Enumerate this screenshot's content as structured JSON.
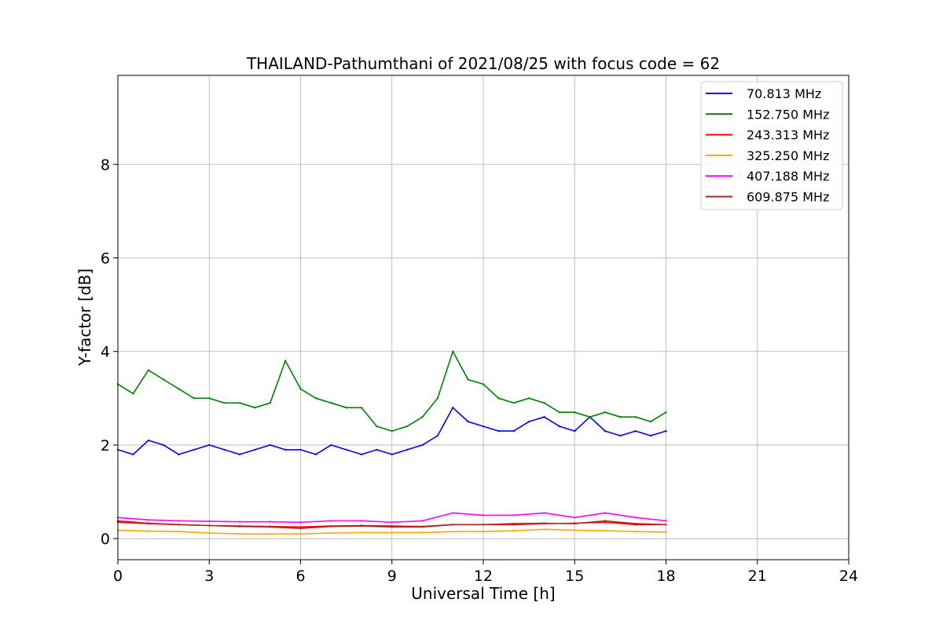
{
  "chart_data": {
    "type": "line",
    "title": "THAILAND-Pathumthani of 2021/08/25 with focus code = 62",
    "xlabel": "Universal Time [h]",
    "ylabel": "Y-factor [dB]",
    "xlim": [
      0,
      24
    ],
    "ylim": [
      -0.45,
      9.9
    ],
    "xticks": [
      0,
      3,
      6,
      9,
      12,
      15,
      18,
      21,
      24
    ],
    "yticks": [
      0,
      2,
      4,
      6,
      8
    ],
    "grid": true,
    "legend_position": "top-right",
    "series": [
      {
        "name": " 70.813 MHz",
        "color": "#0000ff",
        "x": [
          0,
          0.5,
          1,
          1.5,
          2,
          2.5,
          3,
          3.5,
          4,
          4.5,
          5,
          5.5,
          6,
          6.5,
          7,
          7.5,
          8,
          8.5,
          9,
          9.5,
          10,
          10.5,
          11,
          11.5,
          12,
          12.5,
          13,
          13.5,
          14,
          14.5,
          15,
          15.5,
          16,
          16.5,
          17,
          17.5,
          18
        ],
        "values": [
          1.9,
          1.8,
          2.1,
          2.0,
          1.8,
          1.9,
          2.0,
          1.9,
          1.8,
          1.9,
          2.0,
          1.9,
          1.9,
          1.8,
          2.0,
          1.9,
          1.8,
          1.9,
          1.8,
          1.9,
          2.0,
          2.2,
          2.8,
          2.5,
          2.4,
          2.3,
          2.3,
          2.5,
          2.6,
          2.4,
          2.3,
          2.6,
          2.3,
          2.2,
          2.3,
          2.2,
          2.3
        ]
      },
      {
        "name": "152.750 MHz",
        "color": "#008000",
        "x": [
          0,
          0.5,
          1,
          1.5,
          2,
          2.5,
          3,
          3.5,
          4,
          4.5,
          5,
          5.5,
          6,
          6.5,
          7,
          7.5,
          8,
          8.5,
          9,
          9.5,
          10,
          10.5,
          11,
          11.5,
          12,
          12.5,
          13,
          13.5,
          14,
          14.5,
          15,
          15.5,
          16,
          16.5,
          17,
          17.5,
          18
        ],
        "values": [
          3.3,
          3.1,
          3.6,
          3.4,
          3.2,
          3.0,
          3.0,
          2.9,
          2.9,
          2.8,
          2.9,
          3.8,
          3.2,
          3.0,
          2.9,
          2.8,
          2.8,
          2.4,
          2.3,
          2.4,
          2.6,
          3.0,
          4.0,
          3.4,
          3.3,
          3.0,
          2.9,
          3.0,
          2.9,
          2.7,
          2.7,
          2.6,
          2.7,
          2.6,
          2.6,
          2.5,
          2.7
        ]
      },
      {
        "name": "243.313 MHz",
        "color": "#ff0000",
        "x": [
          0,
          1,
          2,
          3,
          4,
          5,
          6,
          7,
          8,
          9,
          10,
          11,
          12,
          13,
          14,
          15,
          16,
          17,
          18
        ],
        "values": [
          0.35,
          0.32,
          0.3,
          0.28,
          0.27,
          0.26,
          0.25,
          0.27,
          0.28,
          0.27,
          0.26,
          0.3,
          0.3,
          0.3,
          0.32,
          0.33,
          0.35,
          0.3,
          0.3
        ]
      },
      {
        "name": "325.250 MHz",
        "color": "#ffa500",
        "x": [
          0,
          1,
          2,
          3,
          4,
          5,
          6,
          7,
          8,
          9,
          10,
          11,
          12,
          13,
          14,
          15,
          16,
          17,
          18
        ],
        "values": [
          0.18,
          0.16,
          0.15,
          0.12,
          0.1,
          0.1,
          0.1,
          0.12,
          0.13,
          0.13,
          0.13,
          0.15,
          0.15,
          0.17,
          0.2,
          0.18,
          0.17,
          0.15,
          0.14
        ]
      },
      {
        "name": "407.188 MHz",
        "color": "#ff00ff",
        "x": [
          0,
          1,
          2,
          3,
          4,
          5,
          6,
          7,
          8,
          9,
          10,
          11,
          12,
          13,
          14,
          15,
          16,
          17,
          18
        ],
        "values": [
          0.45,
          0.4,
          0.38,
          0.37,
          0.36,
          0.36,
          0.35,
          0.38,
          0.38,
          0.35,
          0.38,
          0.55,
          0.5,
          0.5,
          0.55,
          0.45,
          0.55,
          0.45,
          0.38
        ]
      },
      {
        "name": "609.875 MHz",
        "color": "#a52a2a",
        "x": [
          0,
          1,
          2,
          3,
          4,
          5,
          6,
          7,
          8,
          9,
          10,
          11,
          12,
          13,
          14,
          15,
          16,
          17,
          18
        ],
        "values": [
          0.38,
          0.33,
          0.3,
          0.28,
          0.26,
          0.25,
          0.22,
          0.26,
          0.27,
          0.25,
          0.25,
          0.3,
          0.3,
          0.32,
          0.33,
          0.32,
          0.38,
          0.32,
          0.3
        ]
      }
    ]
  }
}
